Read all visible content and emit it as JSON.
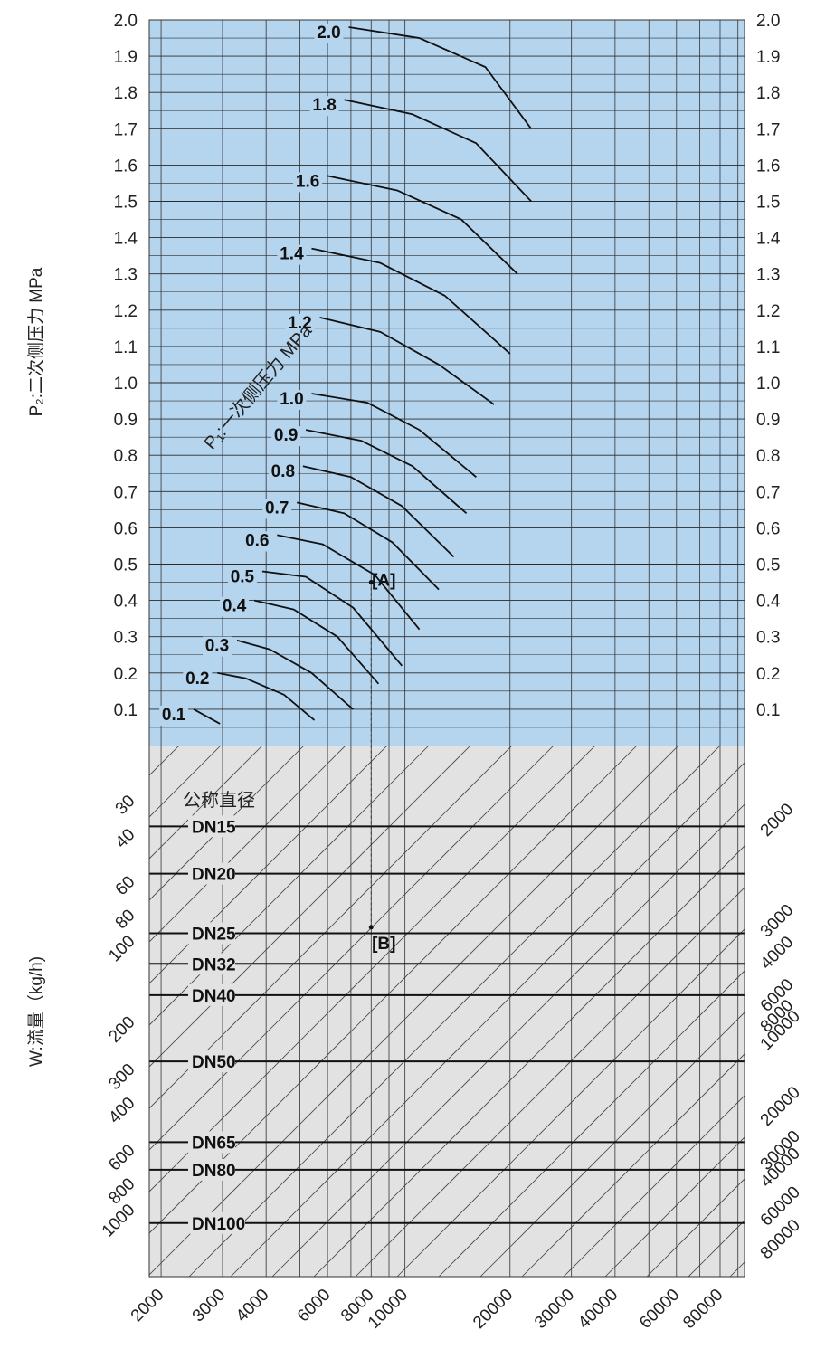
{
  "chart_data": {
    "type": "line",
    "y_axis_label": "P₂:二次侧压力 MPa",
    "p1_label": "P₁:一次侧压力 MPa",
    "dn_heading": "公称直径",
    "flow_axis_label": "W:流量（kg/h)",
    "marker_a": "A",
    "marker_b": "B",
    "p2_ticks": [
      "0.1",
      "0.2",
      "0.3",
      "0.4",
      "0.5",
      "0.6",
      "0.7",
      "0.8",
      "0.9",
      "1.0",
      "1.1",
      "1.2",
      "1.3",
      "1.4",
      "1.5",
      "1.6",
      "1.7",
      "1.8",
      "1.9",
      "2.0"
    ],
    "bottom_ticks": [
      "2000",
      "3000",
      "4000",
      "6000",
      "8000",
      "10000",
      "20000",
      "30000",
      "40000",
      "60000",
      "80000"
    ],
    "left_flow_ticks": [
      "30",
      "40",
      "60",
      "80",
      "100",
      "200",
      "300",
      "400",
      "600",
      "800",
      "1000"
    ],
    "right_flow_ticks": [
      "2000",
      "3000",
      "4000",
      "6000",
      "8000",
      "10000",
      "20000",
      "30000",
      "40000",
      "60000",
      "80000"
    ],
    "dn_sizes": [
      {
        "label": "DN15",
        "flow": 40
      },
      {
        "label": "DN20",
        "flow": 60
      },
      {
        "label": "DN25",
        "flow": 100
      },
      {
        "label": "DN32",
        "flow": 130
      },
      {
        "label": "DN40",
        "flow": 170
      },
      {
        "label": "DN50",
        "flow": 300
      },
      {
        "label": "DN65",
        "flow": 600
      },
      {
        "label": "DN80",
        "flow": 760
      },
      {
        "label": "DN100",
        "flow": 1200
      }
    ],
    "p1_curves": [
      {
        "p1": "0.1",
        "x": [
          2480,
          2950
        ],
        "p2": [
          0.1,
          0.06
        ]
      },
      {
        "p1": "0.2",
        "x": [
          2900,
          3500,
          4500,
          5500
        ],
        "p2": [
          0.2,
          0.185,
          0.14,
          0.07
        ]
      },
      {
        "p1": "0.3",
        "x": [
          3300,
          4100,
          5400,
          7100
        ],
        "p2": [
          0.29,
          0.265,
          0.2,
          0.1
        ]
      },
      {
        "p1": "0.4",
        "x": [
          3700,
          4800,
          6400,
          8400
        ],
        "p2": [
          0.4,
          0.375,
          0.3,
          0.17
        ]
      },
      {
        "p1": "0.5",
        "x": [
          3900,
          5200,
          7100,
          9800
        ],
        "p2": [
          0.48,
          0.465,
          0.38,
          0.22
        ]
      },
      {
        "p1": "0.6",
        "x": [
          4300,
          5800,
          8200,
          11000
        ],
        "p2": [
          0.58,
          0.555,
          0.47,
          0.32
        ]
      },
      {
        "p1": "0.7",
        "x": [
          4900,
          6700,
          9200,
          12500
        ],
        "p2": [
          0.67,
          0.64,
          0.56,
          0.43
        ]
      },
      {
        "p1": "0.8",
        "x": [
          5100,
          7000,
          9800,
          13800
        ],
        "p2": [
          0.77,
          0.74,
          0.66,
          0.52
        ]
      },
      {
        "p1": "0.9",
        "x": [
          5200,
          7500,
          10500,
          15000
        ],
        "p2": [
          0.87,
          0.84,
          0.77,
          0.64
        ]
      },
      {
        "p1": "1.0",
        "x": [
          5400,
          7800,
          11000,
          16000
        ],
        "p2": [
          0.97,
          0.945,
          0.87,
          0.74
        ]
      },
      {
        "p1": "1.2",
        "x": [
          5700,
          8500,
          12500,
          18000
        ],
        "p2": [
          1.18,
          1.14,
          1.05,
          0.94
        ]
      },
      {
        "p1": "1.4",
        "x": [
          5400,
          8500,
          13000,
          20000
        ],
        "p2": [
          1.37,
          1.33,
          1.24,
          1.08
        ]
      },
      {
        "p1": "1.6",
        "x": [
          6000,
          9500,
          14500,
          21000
        ],
        "p2": [
          1.57,
          1.53,
          1.45,
          1.3
        ]
      },
      {
        "p1": "1.8",
        "x": [
          6700,
          10500,
          16000,
          23000
        ],
        "p2": [
          1.78,
          1.74,
          1.66,
          1.5
        ]
      },
      {
        "p1": "2.0",
        "x": [
          6900,
          11000,
          17000,
          23000
        ],
        "p2": [
          1.98,
          1.95,
          1.87,
          1.7
        ]
      }
    ],
    "example_path": {
      "x": 8000,
      "p2": 0.45,
      "flow": 95
    },
    "p2_range": [
      0,
      2.0
    ],
    "x_range": [
      1850,
      94000
    ],
    "flow_range": [
      20,
      1900
    ],
    "background_top": "#b5d5ef",
    "background_bottom": "#e2e2e2",
    "grid": true
  }
}
